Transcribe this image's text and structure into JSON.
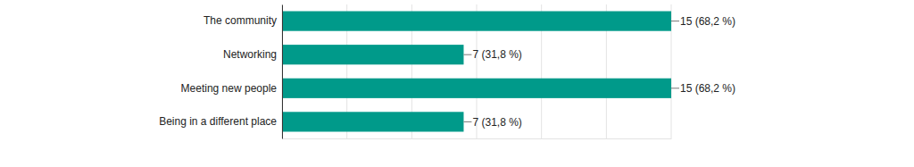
{
  "chart_data": {
    "type": "bar",
    "orientation": "horizontal",
    "categories": [
      "The community",
      "Networking",
      "Meeting new people",
      "Being in a different place"
    ],
    "values": [
      15,
      7,
      15,
      7
    ],
    "value_labels": [
      "15 (68,2 %)",
      "7 (31,8 %)",
      "15 (68,2 %)",
      "7 (31,8 %)"
    ],
    "color": "#009a8a",
    "xlim": [
      0,
      15
    ],
    "xticks": [
      0,
      2.5,
      5,
      7.5,
      10,
      12.5,
      15
    ],
    "grid": true,
    "data_labels": true,
    "tick_labels": "y"
  }
}
